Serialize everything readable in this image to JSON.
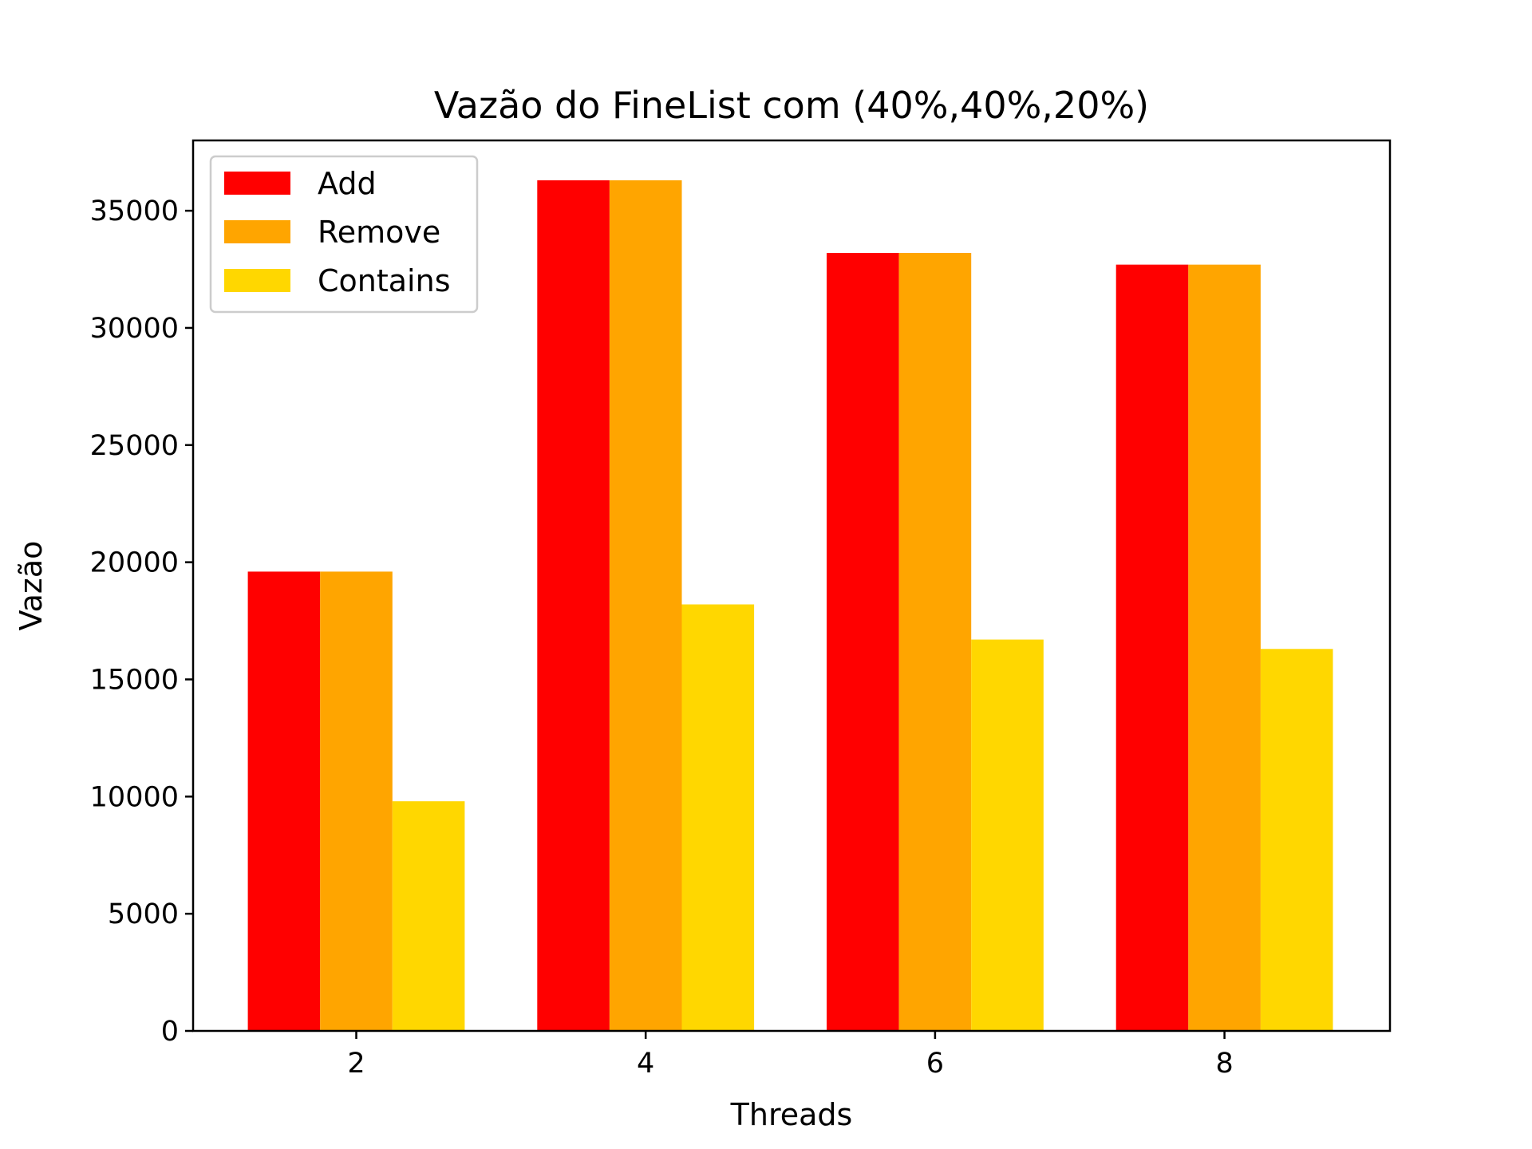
{
  "chart_data": {
    "type": "bar",
    "title": "Vazão do FineList com (40%,40%,20%)",
    "xlabel": "Threads",
    "ylabel": "Vazão",
    "categories": [
      "2",
      "4",
      "6",
      "8"
    ],
    "series": [
      {
        "name": "Add",
        "color": "#ff0000",
        "values": [
          19600,
          36300,
          33200,
          32700
        ]
      },
      {
        "name": "Remove",
        "color": "#ffa500",
        "values": [
          19600,
          36300,
          33200,
          32700
        ]
      },
      {
        "name": "Contains",
        "color": "#ffd700",
        "values": [
          9800,
          18200,
          16700,
          16300
        ]
      }
    ],
    "ylim": [
      0,
      38000
    ],
    "yticks": [
      "0",
      "5000",
      "10000",
      "15000",
      "20000",
      "25000",
      "30000",
      "35000"
    ],
    "grid": false,
    "legend_position": "top-left"
  }
}
